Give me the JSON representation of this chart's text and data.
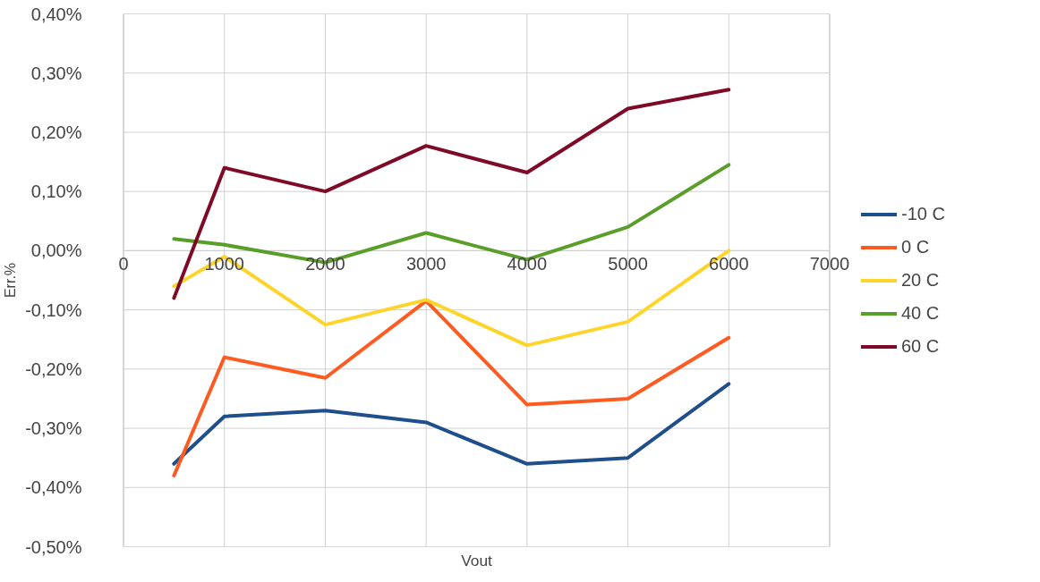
{
  "chart_data": {
    "type": "line",
    "xlabel": "Vout",
    "ylabel": "Err.%",
    "x": [
      500,
      1000,
      2000,
      3000,
      4000,
      5000,
      6000
    ],
    "xlim": [
      0,
      7000
    ],
    "xticks": [
      0,
      1000,
      2000,
      3000,
      4000,
      5000,
      6000,
      7000
    ],
    "ylim": [
      -0.5,
      0.4
    ],
    "yticks": [
      {
        "value": -0.5,
        "label": "-0,50%"
      },
      {
        "value": -0.4,
        "label": "-0,40%"
      },
      {
        "value": -0.3,
        "label": "-0,30%"
      },
      {
        "value": -0.2,
        "label": "-0,20%"
      },
      {
        "value": -0.1,
        "label": "-0,10%"
      },
      {
        "value": 0,
        "label": "0,00%"
      },
      {
        "value": 0.1,
        "label": "0,10%"
      },
      {
        "value": 0.2,
        "label": "0,20%"
      },
      {
        "value": 0.3,
        "label": "0,30%"
      },
      {
        "value": 0.4,
        "label": "0,40%"
      }
    ],
    "grid": true,
    "legend": "right",
    "marker": "none",
    "line_style": "solid",
    "series": [
      {
        "name": "-10 C",
        "color": "#1f4e8c",
        "values": [
          -0.36,
          -0.28,
          -0.27,
          -0.29,
          -0.36,
          -0.35,
          -0.225
        ]
      },
      {
        "name": "0 C",
        "color": "#ff5a1f",
        "values": [
          -0.38,
          -0.18,
          -0.215,
          -0.085,
          -0.26,
          -0.25,
          -0.147
        ]
      },
      {
        "name": "20 C",
        "color": "#ffd42a",
        "values": [
          -0.06,
          -0.01,
          -0.125,
          -0.083,
          -0.16,
          -0.12,
          0.0
        ]
      },
      {
        "name": "40 C",
        "color": "#5a9e2a",
        "values": [
          0.02,
          0.01,
          -0.02,
          0.03,
          -0.015,
          0.04,
          0.145
        ]
      },
      {
        "name": "60 C",
        "color": "#7f0a28",
        "values": [
          -0.08,
          0.14,
          0.1,
          0.177,
          0.132,
          0.24,
          0.272
        ]
      }
    ]
  }
}
